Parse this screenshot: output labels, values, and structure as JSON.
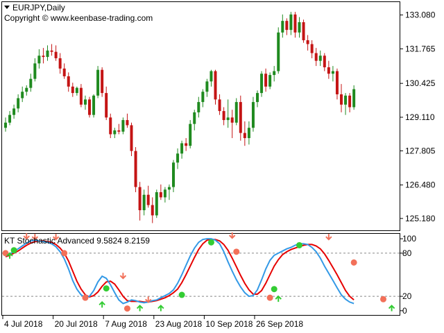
{
  "main_chart": {
    "symbol_timeframe": "EURJPY,Daily",
    "copyright": "Copyright © www.keenbase-trading.com",
    "price_ticks": [
      "133.080",
      "131.765",
      "130.425",
      "129.110",
      "127.805",
      "126.480",
      "125.180"
    ],
    "price_tick_values": [
      133.08,
      131.765,
      130.425,
      129.11,
      127.805,
      126.48,
      125.18
    ],
    "price_range": [
      124.8,
      133.5
    ],
    "candles": [
      [
        128.7,
        129.1,
        128.55,
        128.9
      ],
      [
        128.9,
        129.35,
        128.8,
        129.2
      ],
      [
        129.2,
        129.6,
        129.05,
        129.45
      ],
      [
        129.45,
        130.0,
        129.3,
        129.85
      ],
      [
        129.85,
        130.3,
        129.7,
        130.1
      ],
      [
        130.1,
        130.35,
        129.95,
        130.25
      ],
      [
        130.25,
        130.8,
        130.1,
        130.6
      ],
      [
        130.6,
        131.4,
        130.5,
        131.2
      ],
      [
        131.2,
        131.75,
        131.0,
        131.5
      ],
      [
        131.5,
        131.8,
        131.2,
        131.45
      ],
      [
        131.45,
        131.9,
        131.3,
        131.7
      ],
      [
        131.7,
        131.95,
        131.5,
        131.65
      ],
      [
        131.65,
        131.9,
        131.3,
        131.4
      ],
      [
        131.4,
        131.6,
        130.8,
        131.0
      ],
      [
        131.0,
        131.2,
        130.6,
        130.7
      ],
      [
        130.7,
        130.85,
        130.1,
        130.3
      ],
      [
        130.3,
        130.45,
        129.9,
        130.05
      ],
      [
        130.05,
        130.3,
        129.95,
        130.25
      ],
      [
        130.25,
        130.4,
        129.5,
        129.6
      ],
      [
        129.6,
        129.95,
        129.4,
        129.8
      ],
      [
        129.8,
        129.9,
        129.1,
        129.2
      ],
      [
        129.2,
        130.0,
        129.1,
        129.95
      ],
      [
        129.95,
        131.1,
        129.85,
        130.95
      ],
      [
        130.95,
        131.05,
        129.9,
        130.05
      ],
      [
        130.05,
        130.3,
        129.0,
        129.1
      ],
      [
        129.1,
        129.25,
        128.3,
        128.45
      ],
      [
        128.45,
        128.7,
        128.3,
        128.6
      ],
      [
        128.6,
        128.85,
        128.45,
        128.55
      ],
      [
        128.55,
        129.1,
        128.45,
        129.0
      ],
      [
        129.0,
        129.25,
        128.7,
        128.8
      ],
      [
        128.8,
        128.9,
        127.6,
        127.8
      ],
      [
        127.8,
        127.95,
        126.2,
        126.4
      ],
      [
        126.4,
        126.6,
        125.1,
        125.5
      ],
      [
        125.5,
        126.3,
        125.3,
        126.1
      ],
      [
        126.1,
        126.45,
        125.6,
        125.7
      ],
      [
        125.7,
        126.0,
        125.0,
        125.3
      ],
      [
        125.3,
        126.3,
        125.2,
        126.2
      ],
      [
        126.2,
        126.5,
        125.9,
        126.0
      ],
      [
        126.0,
        126.4,
        125.8,
        126.3
      ],
      [
        126.3,
        126.5,
        125.9,
        126.4
      ],
      [
        126.4,
        127.45,
        126.2,
        127.35
      ],
      [
        127.35,
        127.9,
        127.1,
        127.7
      ],
      [
        127.7,
        128.2,
        127.5,
        128.1
      ],
      [
        128.1,
        128.3,
        127.8,
        128.0
      ],
      [
        128.0,
        129.0,
        127.9,
        128.85
      ],
      [
        128.85,
        129.4,
        128.6,
        129.3
      ],
      [
        129.3,
        129.9,
        129.1,
        129.7
      ],
      [
        129.7,
        130.2,
        129.5,
        130.1
      ],
      [
        130.1,
        130.6,
        129.9,
        130.5
      ],
      [
        130.5,
        130.95,
        130.3,
        130.9
      ],
      [
        130.9,
        130.95,
        129.6,
        129.8
      ],
      [
        129.8,
        130.0,
        129.2,
        129.35
      ],
      [
        129.35,
        129.5,
        128.8,
        129.0
      ],
      [
        129.0,
        129.8,
        128.7,
        129.1
      ],
      [
        129.1,
        129.4,
        128.3,
        128.9
      ],
      [
        128.9,
        129.85,
        128.8,
        129.7
      ],
      [
        129.7,
        129.95,
        128.2,
        128.5
      ],
      [
        128.5,
        128.95,
        128.0,
        128.3
      ],
      [
        128.3,
        128.95,
        128.05,
        128.7
      ],
      [
        128.7,
        129.9,
        128.55,
        129.7
      ],
      [
        129.7,
        130.15,
        129.5,
        130.05
      ],
      [
        130.05,
        130.9,
        129.9,
        130.8
      ],
      [
        130.8,
        131.0,
        130.1,
        130.3
      ],
      [
        130.3,
        130.85,
        130.2,
        130.75
      ],
      [
        130.75,
        131.1,
        130.5,
        130.9
      ],
      [
        130.9,
        132.6,
        130.8,
        132.4
      ],
      [
        132.4,
        133.1,
        132.2,
        132.85
      ],
      [
        132.85,
        132.95,
        132.3,
        132.5
      ],
      [
        132.5,
        133.2,
        132.3,
        133.1
      ],
      [
        133.1,
        133.2,
        132.2,
        132.4
      ],
      [
        132.4,
        133.0,
        132.2,
        132.8
      ],
      [
        132.8,
        132.9,
        132.0,
        132.1
      ],
      [
        132.1,
        132.3,
        131.7,
        131.95
      ],
      [
        131.95,
        132.1,
        131.4,
        131.6
      ],
      [
        131.6,
        131.8,
        131.1,
        131.3
      ],
      [
        131.3,
        131.7,
        131.1,
        131.5
      ],
      [
        131.5,
        131.6,
        130.9,
        131.05
      ],
      [
        131.05,
        131.3,
        130.6,
        130.8
      ],
      [
        130.8,
        131.1,
        130.5,
        130.9
      ],
      [
        130.9,
        131.0,
        129.8,
        130.0
      ],
      [
        130.0,
        130.4,
        129.3,
        129.6
      ],
      [
        129.6,
        130.05,
        129.2,
        129.95
      ],
      [
        129.95,
        130.05,
        129.3,
        129.5
      ],
      [
        129.5,
        130.35,
        129.4,
        130.2
      ]
    ]
  },
  "indicator": {
    "title": "KT Stochastic Advanced 9.5824 8.2159",
    "level_ticks": [
      "100",
      "80",
      "20",
      "0"
    ],
    "level_tick_values": [
      100,
      80,
      20,
      0
    ],
    "dashed_levels": [
      80,
      20
    ],
    "range": [
      -4,
      104
    ],
    "main_line": [
      76,
      79,
      82,
      86,
      90,
      94,
      97,
      98,
      97,
      96,
      95,
      93,
      89,
      82,
      72,
      58,
      42,
      30,
      22,
      18,
      20,
      28,
      40,
      48,
      45,
      36,
      25,
      15,
      10,
      12,
      15,
      14,
      12,
      11,
      12,
      14,
      15,
      18,
      21,
      24,
      29,
      38,
      50,
      63,
      76,
      87,
      95,
      99,
      100,
      100,
      98,
      93,
      82,
      68,
      55,
      43,
      33,
      25,
      20,
      21,
      29,
      43,
      58,
      70,
      77,
      80,
      83,
      86,
      88,
      91,
      93,
      93,
      92,
      88,
      82,
      73,
      62,
      52,
      42,
      32,
      22,
      16,
      12,
      10
    ],
    "signal_line": [
      75,
      77,
      80,
      83,
      87,
      91,
      94,
      96,
      97,
      97,
      96,
      95,
      92,
      87,
      80,
      69,
      55,
      41,
      30,
      22,
      19,
      21,
      26,
      34,
      40,
      41,
      37,
      29,
      20,
      14,
      13,
      13,
      13,
      12,
      12,
      13,
      14,
      16,
      18,
      21,
      25,
      30,
      39,
      50,
      62,
      74,
      85,
      93,
      98,
      99,
      99,
      97,
      92,
      84,
      73,
      61,
      49,
      38,
      29,
      23,
      23,
      28,
      38,
      50,
      62,
      71,
      78,
      82,
      85,
      87,
      89,
      91,
      92,
      92,
      90,
      86,
      79,
      70,
      60,
      50,
      39,
      28,
      20,
      15
    ],
    "dot_markers": [
      {
        "bar": 0,
        "value": 80,
        "color": "#f27059"
      },
      {
        "bar": 2,
        "value": 84,
        "color": "#33cc33"
      },
      {
        "bar": 14,
        "value": 80,
        "color": "#f27059"
      },
      {
        "bar": 19,
        "value": 18,
        "color": "#f27059"
      },
      {
        "bar": 24,
        "value": 31,
        "color": "#33cc33"
      },
      {
        "bar": 29,
        "value": 3,
        "color": "#f27059"
      },
      {
        "bar": 42,
        "value": 22,
        "color": "#33cc33"
      },
      {
        "bar": 49,
        "value": 95,
        "color": "#33cc33"
      },
      {
        "bar": 55,
        "value": 82,
        "color": "#f27059"
      },
      {
        "bar": 63,
        "value": 18,
        "color": "#f27059"
      },
      {
        "bar": 64,
        "value": 30,
        "color": "#33cc33"
      },
      {
        "bar": 70,
        "value": 91,
        "color": "#33cc33"
      },
      {
        "bar": 83,
        "value": 67,
        "color": "#f27059"
      },
      {
        "bar": 90,
        "value": 16,
        "color": "#f27059"
      }
    ],
    "arrow_markers": [
      {
        "bar": 1,
        "value": 80,
        "dir": "up",
        "color": "#33cc33"
      },
      {
        "bar": 5,
        "value": 100,
        "dir": "down",
        "color": "#f27059"
      },
      {
        "bar": 7,
        "value": 99,
        "dir": "down",
        "color": "#f27059"
      },
      {
        "bar": 12,
        "value": 99,
        "dir": "down",
        "color": "#f27059"
      },
      {
        "bar": 23,
        "value": 12,
        "dir": "up",
        "color": "#33cc33"
      },
      {
        "bar": 28,
        "value": 45,
        "dir": "down",
        "color": "#f27059"
      },
      {
        "bar": 32,
        "value": 7,
        "dir": "up",
        "color": "#33cc33"
      },
      {
        "bar": 34,
        "value": 12,
        "dir": "down",
        "color": "#f27059"
      },
      {
        "bar": 37,
        "value": 7,
        "dir": "up",
        "color": "#33cc33"
      },
      {
        "bar": 54,
        "value": 101,
        "dir": "down",
        "color": "#f27059"
      },
      {
        "bar": 65,
        "value": 20,
        "dir": "up",
        "color": "#33cc33"
      },
      {
        "bar": 77,
        "value": 99,
        "dir": "down",
        "color": "#f27059"
      },
      {
        "bar": 92,
        "value": 7,
        "dir": "up",
        "color": "#33cc33"
      }
    ],
    "main_line_color": "#3399e6",
    "signal_line_color": "#e60000"
  },
  "time_axis": {
    "labels": [
      "4 Jul 2018",
      "20 Jul 2018",
      "7 Aug 2018",
      "23 Aug 2018",
      "10 Sep 2018",
      "26 Sep 2018"
    ],
    "label_bars": [
      0,
      12,
      24,
      36,
      48,
      60
    ]
  },
  "colors": {
    "bull_candle": "#1f8a1f",
    "bear_candle": "#c41414",
    "grid": "#888888",
    "frame": "#000000",
    "background": "#ffffff"
  }
}
